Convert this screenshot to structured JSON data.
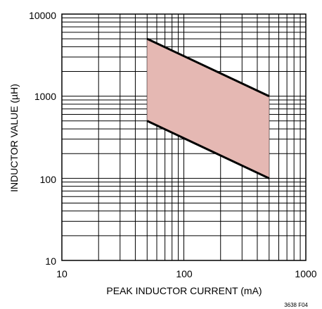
{
  "chart_data": {
    "type": "area",
    "xlabel": "PEAK INDUCTOR CURRENT (mA)",
    "ylabel": "INDUCTOR VALUE (µH)",
    "xscale": "log",
    "yscale": "log",
    "xlim": [
      10,
      1000
    ],
    "ylim": [
      10,
      10000
    ],
    "x_ticks": [
      "10",
      "100",
      "1000"
    ],
    "y_ticks": [
      "10",
      "100",
      "1000",
      "10000"
    ],
    "grid": true,
    "series": [
      {
        "x": [
          50,
          500
        ],
        "values": [
          5000,
          1000
        ]
      },
      {
        "x": [
          50,
          500
        ],
        "values": [
          500,
          100
        ]
      }
    ],
    "fill_color": "#e5b8b3",
    "annotation": "3638 F04"
  }
}
